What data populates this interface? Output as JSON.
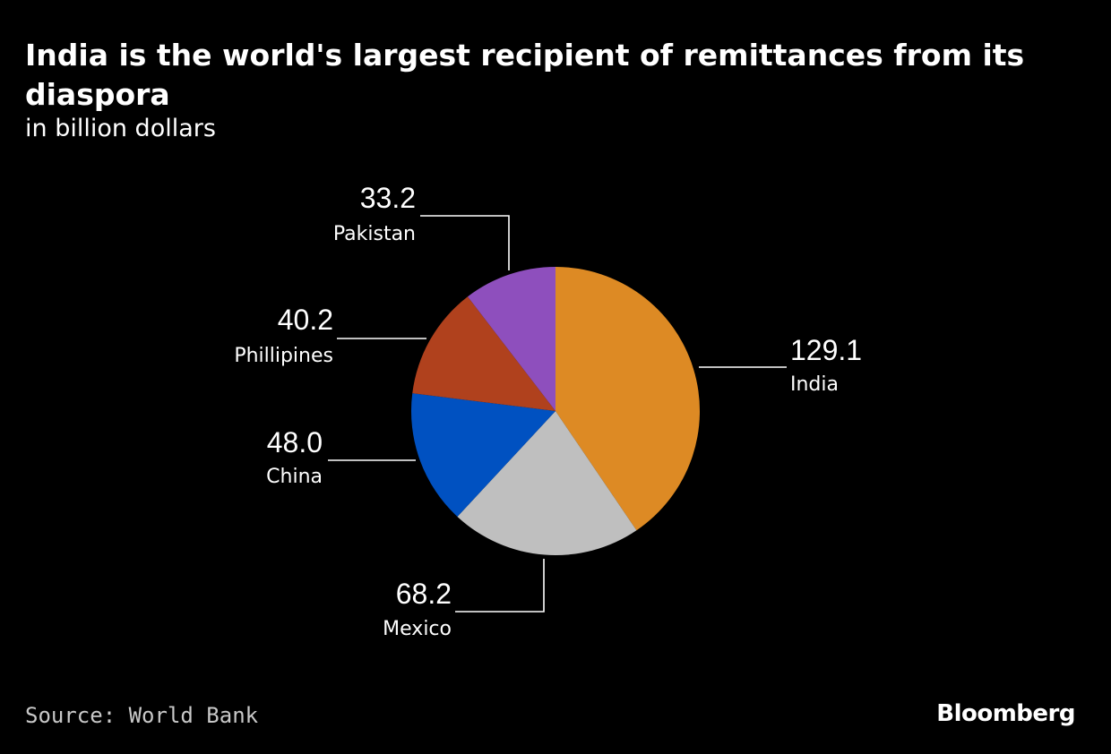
{
  "chart_data": {
    "type": "pie",
    "title": "India is the world's largest recipient of remittances from its diaspora",
    "subtitle": "in billion dollars",
    "slices": [
      {
        "label": "India",
        "value": 129.1,
        "display": "129.1",
        "color": "#dd8a24"
      },
      {
        "label": "Mexico",
        "value": 68.2,
        "display": "68.2",
        "color": "#bfbfbf"
      },
      {
        "label": "China",
        "value": 48.0,
        "display": "48.0",
        "color": "#0051c1"
      },
      {
        "label": "Phillipines",
        "value": 40.2,
        "display": "40.2",
        "color": "#b0411d"
      },
      {
        "label": "Pakistan",
        "value": 33.2,
        "display": "33.2",
        "color": "#8e4fbd"
      }
    ],
    "start": "12 o'clock",
    "direction": "clockwise"
  },
  "footer": {
    "source": "Source: World Bank",
    "brand": "Bloomberg"
  }
}
